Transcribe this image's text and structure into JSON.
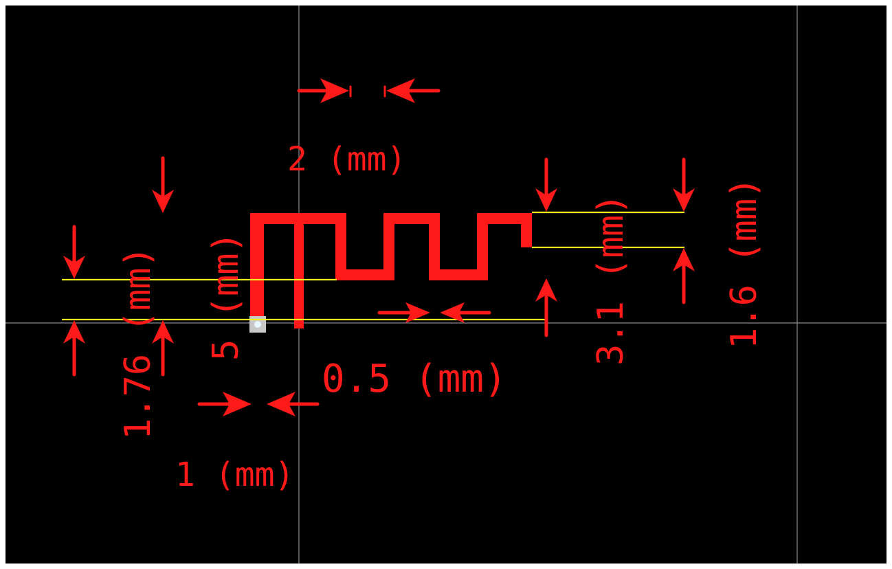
{
  "colors": {
    "canvas": "#000000",
    "trace": "#ff1a1a",
    "dimension": "#ff1a1a",
    "guide": "#f2f21e",
    "crosshair": "#8a8a8a",
    "pad": "#c8c8c8"
  },
  "dimensions": {
    "width_2": "2 (mm)",
    "gap_0_5": "0.5 (mm)",
    "width_1": "1 (mm)",
    "height_1_76": "1.76 (mm)",
    "height_5": "5 (mm)",
    "height_3_1": "3.1 (mm)",
    "height_1_6": "1.6 (mm)"
  },
  "icons": {
    "arrow": "arrow-icon",
    "feed_pad": "feed-pad-icon"
  }
}
